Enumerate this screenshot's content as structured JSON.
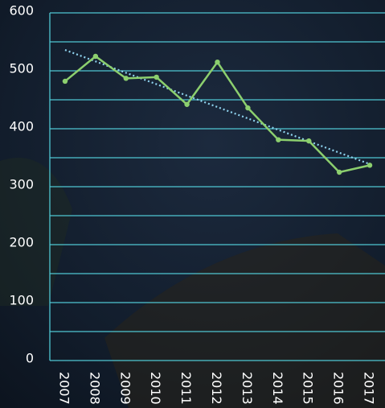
{
  "chart_data": {
    "type": "line",
    "categories": [
      "2007",
      "2008",
      "2009",
      "2010",
      "2011",
      "2012",
      "2013",
      "2014",
      "2015",
      "2016",
      "2017"
    ],
    "values": [
      482,
      525,
      487,
      489,
      442,
      515,
      436,
      381,
      379,
      325,
      337
    ],
    "color": "#8ccf6e",
    "trend": [
      536,
      339
    ],
    "trend_color": "#8fd3ee",
    "ylim": [
      0,
      600
    ],
    "yticks": [
      0,
      100,
      200,
      300,
      400,
      500,
      600
    ],
    "ygrid": [
      0,
      50,
      100,
      150,
      200,
      250,
      300,
      350,
      400,
      450,
      500,
      550,
      600
    ],
    "grid_color": "#4fc6d2"
  }
}
